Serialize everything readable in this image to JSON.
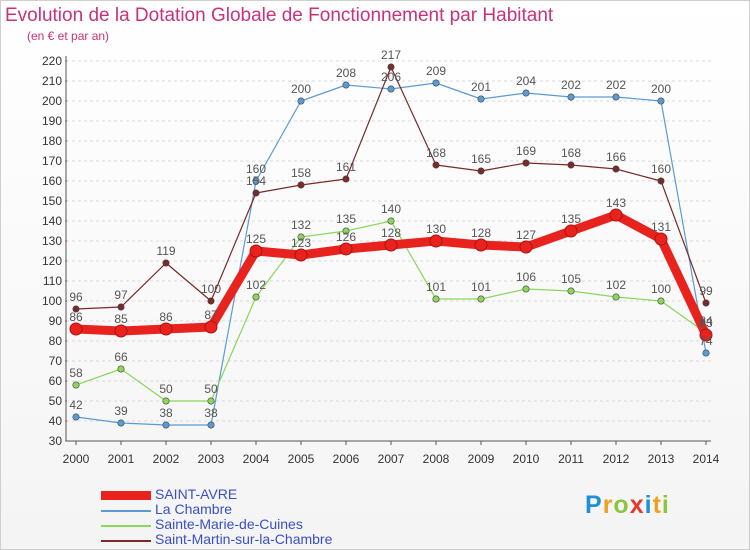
{
  "title": "Evolution de la Dotation Globale de Fonctionnement par Habitant",
  "subtitle": "(en € et par an)",
  "logo": {
    "text": "Proxiti",
    "letters": [
      {
        "ch": "P",
        "color": "#1f8fd6"
      },
      {
        "ch": "r",
        "color": "#f0a020"
      },
      {
        "ch": "o",
        "color": "#8cc63f"
      },
      {
        "ch": "x",
        "color": "#e53b2c"
      },
      {
        "ch": "i",
        "color": "#1f8fd6"
      },
      {
        "ch": "t",
        "color": "#f0a020"
      },
      {
        "ch": "i",
        "color": "#8cc63f"
      }
    ]
  },
  "chart_data": {
    "type": "line",
    "x": [
      "2000",
      "2001",
      "2002",
      "2003",
      "2004",
      "2005",
      "2006",
      "2007",
      "2008",
      "2009",
      "2010",
      "2011",
      "2012",
      "2013",
      "2014"
    ],
    "ylim": [
      30,
      220
    ],
    "yticks": [
      30,
      40,
      50,
      60,
      70,
      80,
      90,
      100,
      110,
      120,
      130,
      140,
      150,
      160,
      170,
      180,
      190,
      200,
      210,
      220
    ],
    "grid": "horizontal dashed",
    "legend_position": "bottom-left",
    "series": [
      {
        "name": "SAINT-AVRE",
        "color": "#e8231e",
        "values": [
          86,
          85,
          86,
          87,
          125,
          123,
          126,
          128,
          130,
          128,
          127,
          135,
          143,
          131,
          83
        ],
        "labels": [
          "86",
          "85",
          "86",
          "87",
          "125",
          "123",
          "126",
          "128",
          "130",
          "128",
          "127",
          "135",
          "143",
          "131",
          "83"
        ]
      },
      {
        "name": "La Chambre",
        "color": "#5b9bd5",
        "values": [
          42,
          39,
          38,
          38,
          160,
          200,
          208,
          206,
          209,
          201,
          204,
          202,
          202,
          200,
          74
        ],
        "labels": [
          "42",
          "39",
          "38",
          "38",
          "160",
          "200",
          "208",
          "206",
          "209",
          "201",
          "204",
          "202",
          "202",
          "200",
          "74"
        ]
      },
      {
        "name": "Sainte-Marie-de-Cuines",
        "color": "#8cd65a",
        "values": [
          58,
          66,
          50,
          50,
          102,
          132,
          135,
          140,
          101,
          101,
          106,
          105,
          102,
          100,
          84
        ],
        "labels": [
          "58",
          "66",
          "50",
          "50",
          "102",
          "132",
          "135",
          "140",
          "101",
          "101",
          "106",
          "105",
          "102",
          "100",
          "84"
        ]
      },
      {
        "name": "Saint-Martin-sur-la-Chambre",
        "color": "#7a2a2a",
        "values": [
          96,
          97,
          119,
          100,
          154,
          158,
          161,
          217,
          168,
          165,
          169,
          168,
          166,
          160,
          99
        ],
        "labels": [
          "96",
          "97",
          "119",
          "100",
          "154",
          "158",
          "161",
          "217",
          "168",
          "165",
          "169",
          "168",
          "166",
          "160",
          "99"
        ]
      }
    ]
  }
}
